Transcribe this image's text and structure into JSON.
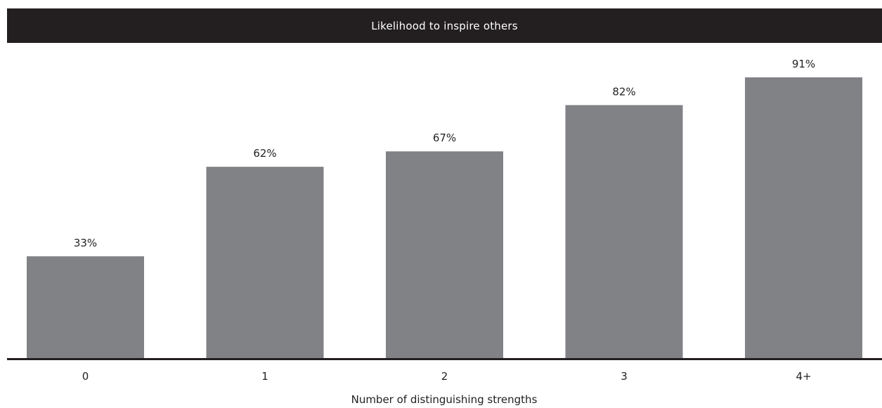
{
  "chart_data": {
    "type": "bar",
    "title": "Likelihood to inspire others",
    "xlabel": "Number of distinguishing strengths",
    "ylabel": "",
    "categories": [
      "0",
      "1",
      "2",
      "3",
      "4+"
    ],
    "values": [
      33,
      62,
      67,
      82,
      91
    ],
    "value_labels": [
      "33%",
      "62%",
      "67%",
      "82%",
      "91%"
    ],
    "ylim": [
      0,
      100
    ],
    "grid": false,
    "legend": "none",
    "colors": {
      "bar": "#818285",
      "title_bg": "#231f20",
      "title_text": "#ffffff",
      "axis": "#231f20",
      "text": "#231f20"
    }
  }
}
